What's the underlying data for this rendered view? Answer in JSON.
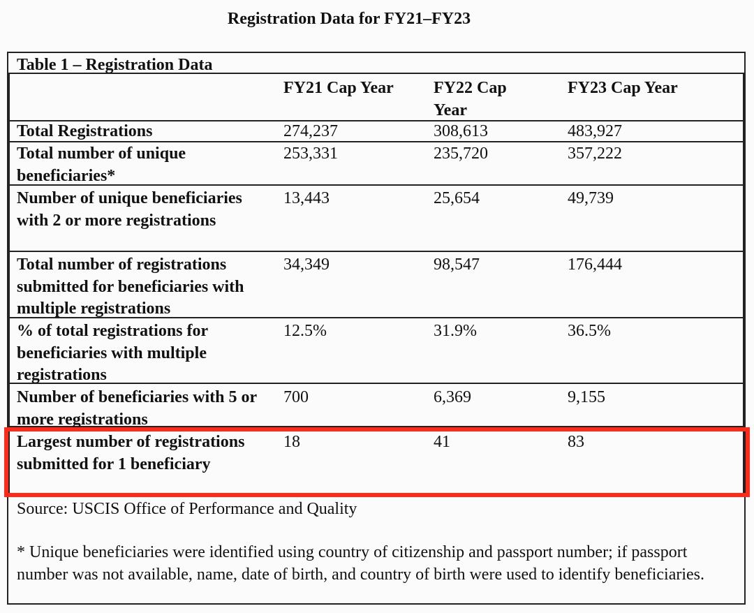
{
  "title": "Registration Data for FY21–FY23",
  "table": {
    "caption": "Table 1 – Registration Data",
    "columns": [
      "FY21 Cap Year",
      "FY22 Cap Year",
      "FY23 Cap Year"
    ],
    "rows": [
      {
        "label": "Total Registrations",
        "values": [
          "274,237",
          "308,613",
          "483,927"
        ]
      },
      {
        "label": "Total number of unique beneficiaries*",
        "values": [
          "253,331",
          "235,720",
          "357,222"
        ]
      },
      {
        "label": "Number of unique beneficiaries with 2 or more registrations",
        "values": [
          "13,443",
          "25,654",
          "49,739"
        ]
      },
      {
        "label": "Total number of registrations submitted for beneficiaries with multiple registrations",
        "values": [
          "34,349",
          "98,547",
          "176,444"
        ]
      },
      {
        "label": "% of total registrations for beneficiaries with multiple registrations",
        "values": [
          "12.5%",
          "31.9%",
          "36.5%"
        ]
      },
      {
        "label": "Number of beneficiaries with 5 or more registrations",
        "values": [
          "700",
          "6,369",
          "9,155"
        ]
      },
      {
        "label": "Largest number of registrations submitted for 1 beneficiary",
        "values": [
          "18",
          "41",
          "83"
        ]
      }
    ],
    "source": "Source: USCIS Office of Performance and Quality",
    "footnote": "* Unique beneficiaries were identified using country of citizenship and passport number; if passport number was not available, name, date of birth, and country of birth were used to identify beneficiaries."
  },
  "colors": {
    "highlight": "#ff2a17",
    "border": "#222222"
  }
}
